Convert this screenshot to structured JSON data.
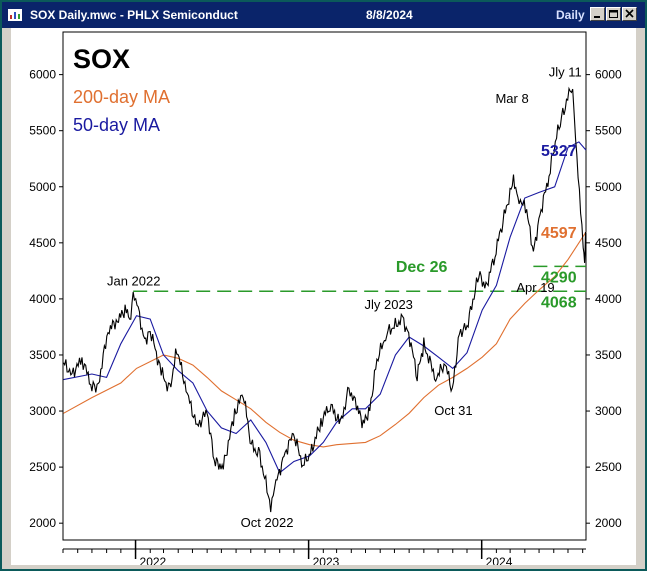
{
  "window": {
    "title": "SOX Daily.mwc - PHLX Semiconduct",
    "date": "8/8/2024",
    "period": "Daily"
  },
  "colors": {
    "price": "#000000",
    "ma50": "#1a1aa0",
    "ma200": "#e07030",
    "support": "#2a9a2a",
    "titlebar": "#0a246a"
  },
  "chart_data": {
    "type": "line",
    "title": "SOX",
    "legend": [
      {
        "label": "200-day MA",
        "color": "#e07030"
      },
      {
        "label": "50-day MA",
        "color": "#1a1aa0"
      }
    ],
    "y_ticks": [
      2000,
      2500,
      3000,
      3500,
      4000,
      4500,
      5000,
      5500,
      6000
    ],
    "ylim": [
      1850,
      6380
    ],
    "xlim": [
      "2021-08-01",
      "2024-08-08"
    ],
    "x_ticks": [
      {
        "date": "2022-01-01",
        "label": "2022"
      },
      {
        "date": "2023-01-01",
        "label": "2023"
      },
      {
        "date": "2024-01-01",
        "label": "2024"
      }
    ],
    "series": [
      {
        "name": "SOX",
        "color": "#000000",
        "points": [
          [
            "2021-08-02",
            3430
          ],
          [
            "2021-08-20",
            3330
          ],
          [
            "2021-09-10",
            3460
          ],
          [
            "2021-10-01",
            3230
          ],
          [
            "2021-10-12",
            3180
          ],
          [
            "2021-11-04",
            3720
          ],
          [
            "2021-11-26",
            3820
          ],
          [
            "2021-12-10",
            3900
          ],
          [
            "2021-12-22",
            3850
          ],
          [
            "2021-12-27",
            4050
          ],
          [
            "2022-01-04",
            3960
          ],
          [
            "2022-01-20",
            3620
          ],
          [
            "2022-02-01",
            3720
          ],
          [
            "2022-02-24",
            3350
          ],
          [
            "2022-03-14",
            3180
          ],
          [
            "2022-03-29",
            3560
          ],
          [
            "2022-04-20",
            3150
          ],
          [
            "2022-05-11",
            2860
          ],
          [
            "2022-06-01",
            3000
          ],
          [
            "2022-06-16",
            2550
          ],
          [
            "2022-07-05",
            2500
          ],
          [
            "2022-07-29",
            2980
          ],
          [
            "2022-08-16",
            3160
          ],
          [
            "2022-09-02",
            2700
          ],
          [
            "2022-09-20",
            2600
          ],
          [
            "2022-10-13",
            2160
          ],
          [
            "2022-10-24",
            2350
          ],
          [
            "2022-11-10",
            2600
          ],
          [
            "2022-11-30",
            2800
          ],
          [
            "2022-12-20",
            2520
          ],
          [
            "2023-01-05",
            2620
          ],
          [
            "2023-01-27",
            2900
          ],
          [
            "2023-02-15",
            3060
          ],
          [
            "2023-03-09",
            2880
          ],
          [
            "2023-03-27",
            3200
          ],
          [
            "2023-04-12",
            3050
          ],
          [
            "2023-04-26",
            2880
          ],
          [
            "2023-05-10",
            3020
          ],
          [
            "2023-05-25",
            3450
          ],
          [
            "2023-06-15",
            3700
          ],
          [
            "2023-07-18",
            3820
          ],
          [
            "2023-07-31",
            3690
          ],
          [
            "2023-08-18",
            3320
          ],
          [
            "2023-09-01",
            3590
          ],
          [
            "2023-09-26",
            3300
          ],
          [
            "2023-10-16",
            3420
          ],
          [
            "2023-10-31",
            3180
          ],
          [
            "2023-11-15",
            3700
          ],
          [
            "2023-12-01",
            3750
          ],
          [
            "2023-12-26",
            4220
          ],
          [
            "2024-01-10",
            4100
          ],
          [
            "2024-01-29",
            4400
          ],
          [
            "2024-02-15",
            4700
          ],
          [
            "2024-03-08",
            5050
          ],
          [
            "2024-03-20",
            4900
          ],
          [
            "2024-04-05",
            4780
          ],
          [
            "2024-04-19",
            4420
          ],
          [
            "2024-05-03",
            4750
          ],
          [
            "2024-05-22",
            5100
          ],
          [
            "2024-06-07",
            5450
          ],
          [
            "2024-06-20",
            5650
          ],
          [
            "2024-07-11",
            5930
          ],
          [
            "2024-07-17",
            5400
          ],
          [
            "2024-07-25",
            4950
          ],
          [
            "2024-08-02",
            4500
          ],
          [
            "2024-08-05",
            4290
          ],
          [
            "2024-08-07",
            4597
          ]
        ]
      },
      {
        "name": "50-day MA",
        "color": "#1a1aa0",
        "points": [
          [
            "2021-08-02",
            3280
          ],
          [
            "2021-10-01",
            3330
          ],
          [
            "2021-11-01",
            3300
          ],
          [
            "2021-12-01",
            3600
          ],
          [
            "2022-01-03",
            3850
          ],
          [
            "2022-02-01",
            3820
          ],
          [
            "2022-03-01",
            3500
          ],
          [
            "2022-04-01",
            3360
          ],
          [
            "2022-05-02",
            3250
          ],
          [
            "2022-06-01",
            3000
          ],
          [
            "2022-07-01",
            2850
          ],
          [
            "2022-08-01",
            2800
          ],
          [
            "2022-09-01",
            2920
          ],
          [
            "2022-10-03",
            2720
          ],
          [
            "2022-11-01",
            2450
          ],
          [
            "2022-12-01",
            2550
          ],
          [
            "2023-01-03",
            2600
          ],
          [
            "2023-02-01",
            2720
          ],
          [
            "2023-03-01",
            2900
          ],
          [
            "2023-04-03",
            3020
          ],
          [
            "2023-05-01",
            3020
          ],
          [
            "2023-06-01",
            3150
          ],
          [
            "2023-07-03",
            3500
          ],
          [
            "2023-08-01",
            3660
          ],
          [
            "2023-09-01",
            3580
          ],
          [
            "2023-10-02",
            3480
          ],
          [
            "2023-11-01",
            3380
          ],
          [
            "2023-12-01",
            3520
          ],
          [
            "2024-01-02",
            3900
          ],
          [
            "2024-02-01",
            4120
          ],
          [
            "2024-03-01",
            4550
          ],
          [
            "2024-04-01",
            4900
          ],
          [
            "2024-05-01",
            4950
          ],
          [
            "2024-06-03",
            5000
          ],
          [
            "2024-07-01",
            5350
          ],
          [
            "2024-07-24",
            5400
          ],
          [
            "2024-08-08",
            5327
          ]
        ]
      },
      {
        "name": "200-day MA",
        "color": "#e07030",
        "points": [
          [
            "2021-08-02",
            2980
          ],
          [
            "2021-10-01",
            3120
          ],
          [
            "2021-12-01",
            3250
          ],
          [
            "2022-01-03",
            3380
          ],
          [
            "2022-03-01",
            3500
          ],
          [
            "2022-04-01",
            3470
          ],
          [
            "2022-05-02",
            3410
          ],
          [
            "2022-06-01",
            3300
          ],
          [
            "2022-07-01",
            3180
          ],
          [
            "2022-08-01",
            3100
          ],
          [
            "2022-09-01",
            3020
          ],
          [
            "2022-10-03",
            2900
          ],
          [
            "2022-11-01",
            2810
          ],
          [
            "2022-12-01",
            2740
          ],
          [
            "2023-01-03",
            2700
          ],
          [
            "2023-02-01",
            2680
          ],
          [
            "2023-03-01",
            2700
          ],
          [
            "2023-05-01",
            2720
          ],
          [
            "2023-06-01",
            2780
          ],
          [
            "2023-07-03",
            2880
          ],
          [
            "2023-08-01",
            2980
          ],
          [
            "2023-09-01",
            3120
          ],
          [
            "2023-10-02",
            3230
          ],
          [
            "2023-11-01",
            3300
          ],
          [
            "2023-12-01",
            3380
          ],
          [
            "2024-01-02",
            3480
          ],
          [
            "2024-02-01",
            3600
          ],
          [
            "2024-03-01",
            3820
          ],
          [
            "2024-04-01",
            3960
          ],
          [
            "2024-05-01",
            4080
          ],
          [
            "2024-06-03",
            4200
          ],
          [
            "2024-07-01",
            4350
          ],
          [
            "2024-08-08",
            4597
          ]
        ]
      }
    ],
    "reference_lines": [
      {
        "value": 4290,
        "label": "4290",
        "start": "2024-04-19",
        "color": "#2a9a2a"
      },
      {
        "value": 4068,
        "label": "4068",
        "start": "2021-12-27",
        "color": "#2a9a2a"
      }
    ],
    "value_labels": [
      {
        "text": "5327",
        "color": "#1a1aa0"
      },
      {
        "text": "4597",
        "color": "#e07030"
      },
      {
        "text": "4290",
        "color": "#2a9a2a"
      },
      {
        "text": "4068",
        "color": "#2a9a2a"
      }
    ],
    "annotations": [
      {
        "text": "Jan 2022",
        "date": "2022-01-04",
        "value": 4050
      },
      {
        "text": "Oct 2022",
        "date": "2022-10-13",
        "value": 2160
      },
      {
        "text": "Jly 2023",
        "date": "2023-07-18",
        "value": 3820
      },
      {
        "text": "Oct 31",
        "date": "2023-10-31",
        "value": 3180
      },
      {
        "text": "Dec 26",
        "date": "2023-12-26",
        "value": 4220
      },
      {
        "text": "Mar 8",
        "date": "2024-03-08",
        "value": 5050
      },
      {
        "text": "Apr 19",
        "date": "2024-04-19",
        "value": 4420
      },
      {
        "text": "Jly 11",
        "date": "2024-07-11",
        "value": 5930
      }
    ]
  }
}
